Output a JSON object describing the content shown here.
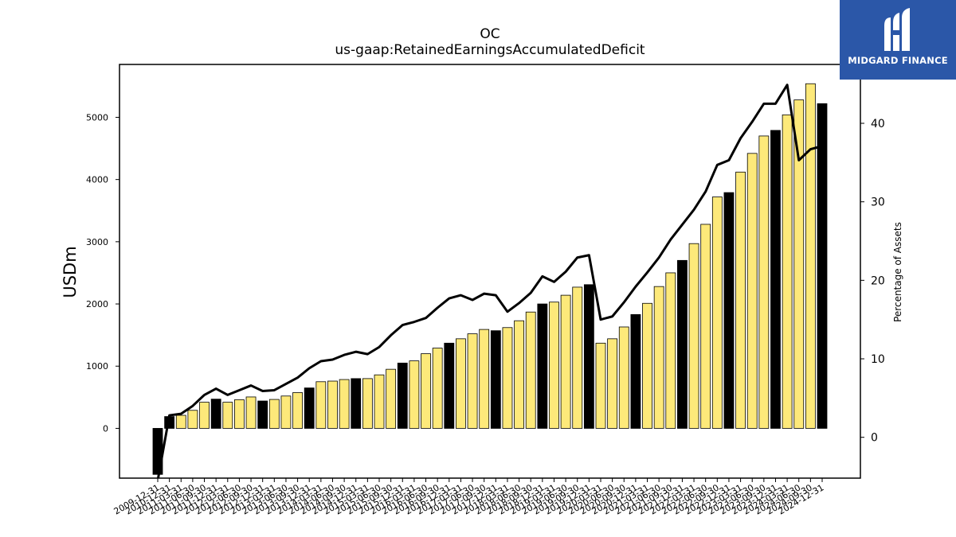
{
  "brand": {
    "name": "MIDGARD FINANCE",
    "bg_color": "#2b57a8"
  },
  "chart_data": {
    "type": "bar",
    "title": "OC",
    "subtitle": "us-gaap:RetainedEarningsAccumulatedDeficit",
    "ylabel": "USDm",
    "ylabel_right": "Percentage of Assets",
    "ylim": [
      -800,
      5850
    ],
    "ylim_right": [
      -5.2,
      47.5
    ],
    "yticks": [
      0,
      1000,
      2000,
      3000,
      4000,
      5000
    ],
    "yticks_right": [
      0,
      10,
      20,
      30,
      40
    ],
    "grid": false,
    "legend": "none",
    "colors": {
      "q4_bar": "#000000",
      "other_bar": "#fde97a",
      "bar_edge": "#000000",
      "line": "#000000"
    },
    "categories": [
      "2009-12-31",
      "2010-12-31",
      "2011-03-31",
      "2011-06-30",
      "2011-09-30",
      "2011-12-31",
      "2012-03-31",
      "2012-06-30",
      "2012-09-30",
      "2012-12-31",
      "2013-03-31",
      "2013-06-30",
      "2013-09-30",
      "2013-12-31",
      "2014-03-31",
      "2014-06-30",
      "2014-09-30",
      "2014-12-31",
      "2015-03-31",
      "2015-06-30",
      "2015-09-30",
      "2015-12-31",
      "2016-03-31",
      "2016-06-30",
      "2016-09-30",
      "2016-12-31",
      "2017-03-31",
      "2017-06-30",
      "2017-09-30",
      "2017-12-31",
      "2018-03-31",
      "2018-06-30",
      "2018-09-30",
      "2018-12-31",
      "2019-03-31",
      "2019-06-30",
      "2019-09-30",
      "2019-12-31",
      "2020-03-31",
      "2020-06-30",
      "2020-09-30",
      "2020-12-31",
      "2021-03-31",
      "2021-06-30",
      "2021-09-30",
      "2021-12-31",
      "2022-03-31",
      "2022-06-30",
      "2022-09-30",
      "2022-12-31",
      "2023-03-31",
      "2023-06-30",
      "2023-09-30",
      "2023-12-31",
      "2024-03-31",
      "2024-06-30",
      "2024-09-30",
      "2024-12-31"
    ],
    "series": [
      {
        "values": [
          -740,
          190,
          210,
          290,
          420,
          470,
          420,
          460,
          505,
          440,
          465,
          520,
          575,
          650,
          750,
          760,
          785,
          800,
          800,
          860,
          950,
          1050,
          1085,
          1200,
          1290,
          1370,
          1440,
          1520,
          1590,
          1570,
          1620,
          1730,
          1870,
          2000,
          2030,
          2140,
          2270,
          2310,
          1370,
          1440,
          1630,
          1830,
          2010,
          2280,
          2500,
          2700,
          2970,
          3280,
          3720,
          3790,
          4120,
          4420,
          4700,
          4790,
          5040,
          5280,
          5540,
          5220
        ]
      },
      {
        "values": [
          -5.5,
          2.8,
          3,
          4,
          5.4,
          6.2,
          5.4,
          6,
          6.6,
          5.9,
          6,
          6.8,
          7.6,
          8.8,
          9.7,
          9.9,
          10.5,
          10.9,
          10.6,
          11.5,
          13,
          14.3,
          14.7,
          15.2,
          16.5,
          17.7,
          18.1,
          17.5,
          18.3,
          18.1,
          16,
          17.1,
          18.4,
          20.5,
          19.8,
          21.1,
          22.9,
          23.2,
          15,
          15.4,
          17.2,
          19.2,
          21,
          22.9,
          25.2,
          27.1,
          29,
          31.3,
          34.7,
          35.3,
          38.1,
          40.2,
          42.5,
          42.5,
          44.9,
          35.3,
          36.7,
          37.1
        ]
      }
    ]
  }
}
